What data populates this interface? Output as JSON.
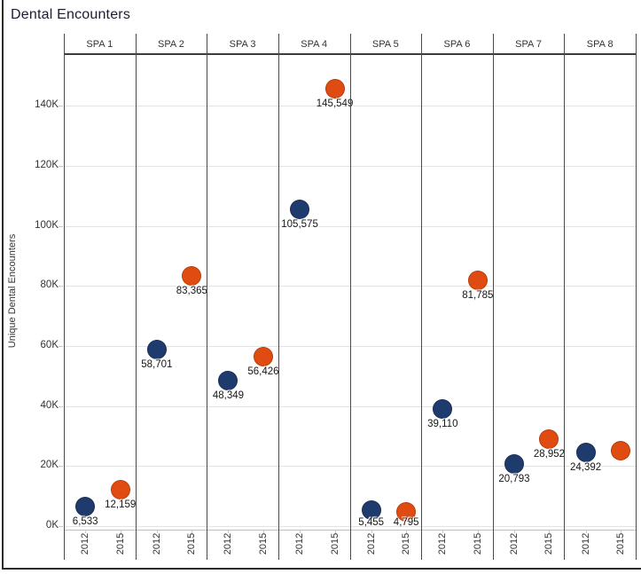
{
  "title": "Dental Encounters",
  "y_axis": {
    "title": "Unique Dental Encounters",
    "tick_labels": [
      "0K",
      "20K",
      "40K",
      "60K",
      "80K",
      "100K",
      "120K",
      "140K"
    ]
  },
  "x_axis": {
    "year_labels": [
      "2012",
      "2015"
    ]
  },
  "colors": {
    "year_2012": "#1f3a6d",
    "year_2015": "#e04b11",
    "gridline": "#e3e3e3",
    "panel_divider": "#4a4a4a",
    "text": "#333333"
  },
  "chart_data": {
    "type": "scatter",
    "title": "Dental Encounters",
    "ylabel": "Unique Dental Encounters",
    "ylim": [
      0,
      157000
    ],
    "grid": "horizontal-every-20000",
    "x_categories": [
      "2012",
      "2015"
    ],
    "series_colors": {
      "2012": "#1f3a6d",
      "2015": "#e04b11"
    },
    "facets": [
      {
        "name": "SPA 1",
        "points": [
          {
            "year": "2012",
            "value": 6533,
            "label": "6,533"
          },
          {
            "year": "2015",
            "value": 12159,
            "label": "12,159"
          }
        ]
      },
      {
        "name": "SPA 2",
        "points": [
          {
            "year": "2012",
            "value": 58701,
            "label": "58,701"
          },
          {
            "year": "2015",
            "value": 83365,
            "label": "83,365"
          }
        ]
      },
      {
        "name": "SPA 3",
        "points": [
          {
            "year": "2012",
            "value": 48349,
            "label": "48,349"
          },
          {
            "year": "2015",
            "value": 56426,
            "label": "56,426"
          }
        ]
      },
      {
        "name": "SPA 4",
        "points": [
          {
            "year": "2012",
            "value": 105575,
            "label": "105,575"
          },
          {
            "year": "2015",
            "value": 145549,
            "label": "145,549"
          }
        ]
      },
      {
        "name": "SPA 5",
        "points": [
          {
            "year": "2012",
            "value": 5455,
            "label": "5,455"
          },
          {
            "year": "2015",
            "value": 4795,
            "label": "4,795"
          }
        ]
      },
      {
        "name": "SPA 6",
        "points": [
          {
            "year": "2012",
            "value": 39110,
            "label": "39,110"
          },
          {
            "year": "2015",
            "value": 81785,
            "label": "81,785"
          }
        ]
      },
      {
        "name": "SPA 7",
        "points": [
          {
            "year": "2012",
            "value": 20793,
            "label": "20,793"
          },
          {
            "year": "2015",
            "value": 28952,
            "label": "28,952"
          }
        ]
      },
      {
        "name": "SPA 8",
        "points": [
          {
            "year": "2012",
            "value": 24392,
            "label": "24,392"
          },
          {
            "year": "2015",
            "value": 25000,
            "label": ""
          }
        ]
      }
    ]
  }
}
